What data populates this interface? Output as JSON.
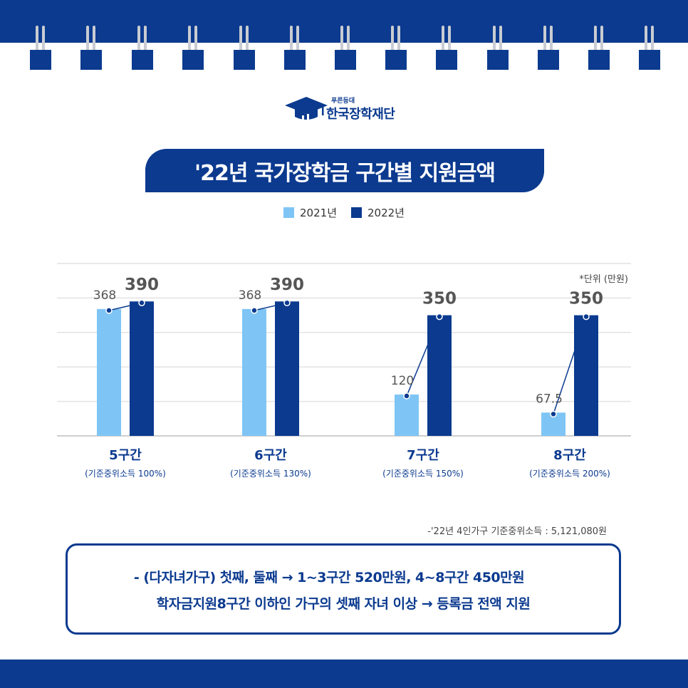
{
  "brand": {
    "small_text": "푸른등대",
    "name": "한국장학재단",
    "icon": "graduation-cap-icon"
  },
  "title": "'22년 국가장학금 구간별 지원금액",
  "unit_label": "*단위 (만원)",
  "colors": {
    "primary": "#0b3a8f",
    "series_2021": "#7ec5f5",
    "series_2022": "#0b3a8f",
    "connector": "#0b3a8f",
    "value_label": "#555555"
  },
  "chart_data": {
    "type": "bar",
    "categories": [
      "5구간",
      "6구간",
      "7구간",
      "8구간"
    ],
    "category_sublabels": [
      "(기준중위소득 100%)",
      "(기준중위소득 130%)",
      "(기준중위소득 150%)",
      "(기준중위소득 200%)"
    ],
    "series": [
      {
        "name": "2021년",
        "values": [
          368,
          368,
          120,
          67.5
        ]
      },
      {
        "name": "2022년",
        "values": [
          390,
          390,
          350,
          350
        ]
      }
    ],
    "value_labels_2021": [
      "368",
      "368",
      "120",
      "67.5"
    ],
    "value_labels_2022": [
      "390",
      "390",
      "350",
      "350"
    ],
    "unit": "만원",
    "ylim": [
      0,
      500
    ],
    "grid": true,
    "legend_position": "top-center"
  },
  "footnote": "-'22년 4인가구 기준중위소득 : 5,121,080원",
  "note": {
    "line1": "- (다자녀가구) 첫째, 둘째 → 1~3구간 520만원, 4~8구간 450만원",
    "line2": "학자금지원8구간 이하인 가구의 셋째 자녀 이상 → 등록금 전액 지원"
  }
}
